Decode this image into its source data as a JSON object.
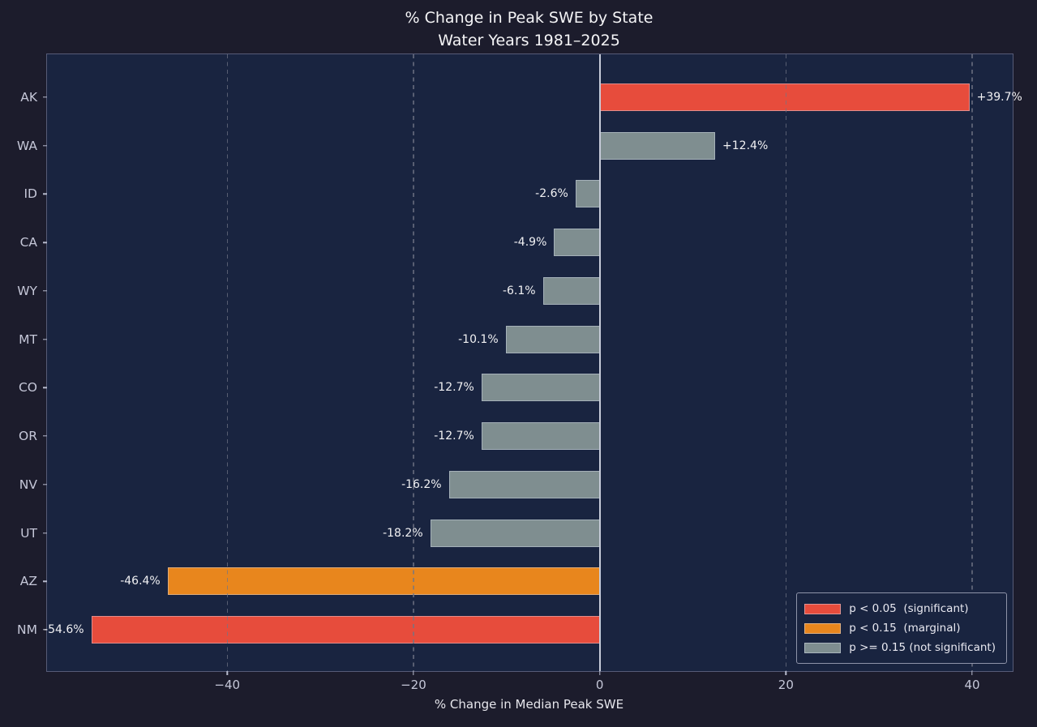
{
  "chart_data": {
    "type": "bar",
    "orientation": "horizontal",
    "title": {
      "line1": "% Change in Peak SWE by State",
      "line2": "Water Years 1981–2025"
    },
    "xlabel": "% Change in Median Peak SWE",
    "categories": [
      "AK",
      "WA",
      "ID",
      "CA",
      "WY",
      "MT",
      "CO",
      "OR",
      "NV",
      "UT",
      "AZ",
      "NM"
    ],
    "values": [
      39.7,
      12.4,
      -2.6,
      -4.9,
      -6.1,
      -10.1,
      -12.7,
      -12.7,
      -16.2,
      -18.2,
      -46.4,
      -54.6
    ],
    "bar_labels": [
      "+39.7%",
      "+12.4%",
      "-2.6%",
      "-4.9%",
      "-6.1%",
      "-10.1%",
      "-12.7%",
      "-12.7%",
      "-16.2%",
      "-18.2%",
      "-46.4%",
      "-54.6%"
    ],
    "significance": [
      "significant",
      "not_significant",
      "not_significant",
      "not_significant",
      "not_significant",
      "not_significant",
      "not_significant",
      "not_significant",
      "not_significant",
      "not_significant",
      "marginal",
      "significant"
    ],
    "xlim": [
      -59.35,
      44.35
    ],
    "xticks": [
      -40,
      -20,
      0,
      20,
      40
    ],
    "xtick_labels": [
      "−40",
      "−20",
      "0",
      "20",
      "40"
    ],
    "grid": {
      "axis": "x",
      "style": "dashed",
      "on": true,
      "zero_line": "solid"
    },
    "legend": {
      "position": "lower right",
      "items": [
        {
          "key": "significant",
          "label": "p < 0.05  (significant)",
          "color": "#e74c3c"
        },
        {
          "key": "marginal",
          "label": "p < 0.15  (marginal)",
          "color": "#e8861d"
        },
        {
          "key": "not_significant",
          "label": "p >= 0.15 (not significant)",
          "color": "#7f8e90"
        }
      ]
    },
    "colors": {
      "figure_background": "#1c1c2c",
      "axes_background": "#192440",
      "spine": "#565b77",
      "zero_line": "#c6cbd9",
      "grid_line": "#707585",
      "tick_label": "#c5c7d8",
      "value_label": "#f1f1f3",
      "title_text": "#f4f4f6",
      "axis_label_text": "#e6e6ec",
      "legend_text": "#e9e9f1"
    }
  }
}
